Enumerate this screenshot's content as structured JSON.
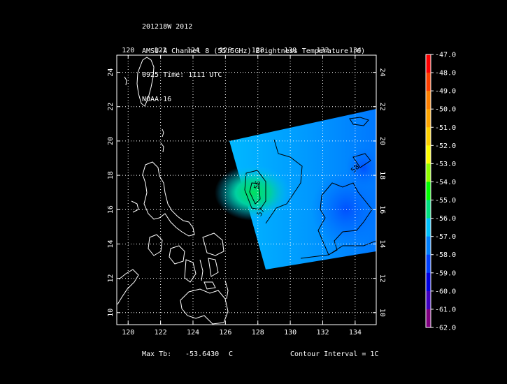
{
  "header": {
    "line1": "201218W 2012",
    "line2": "AMSU-A Channel 8 (55.5GHz) Brightness Temperature (C)",
    "line3": "0925 Time: 1111 UTC",
    "line4": "NOAA-16"
  },
  "map": {
    "lon_ticks": [
      "120",
      "122",
      "124",
      "126",
      "128",
      "130",
      "132",
      "134"
    ],
    "lat_ticks": [
      "10",
      "12",
      "14",
      "16",
      "18",
      "20",
      "22",
      "24"
    ],
    "lon_range": [
      119.3,
      135.3
    ],
    "lat_range": [
      9.3,
      25.0
    ],
    "contour_labels": [
      "56",
      "57",
      "58"
    ],
    "colors": {
      "background": "#000000",
      "coastline": "#ffffff",
      "grid": "#ffffff",
      "contour": "#000000"
    }
  },
  "colorbar": {
    "labels": [
      "-47.0",
      "-48.0",
      "-49.0",
      "-50.0",
      "-51.0",
      "-52.0",
      "-53.0",
      "-54.0",
      "-55.0",
      "-56.0",
      "-57.0",
      "-58.0",
      "-59.0",
      "-60.0",
      "-61.0",
      "-62.0"
    ],
    "colors": [
      "#ff0000",
      "#ff4000",
      "#ff8000",
      "#ffa500",
      "#ffd000",
      "#ffff00",
      "#90ff00",
      "#00ff00",
      "#00e080",
      "#00c0ff",
      "#0080ff",
      "#0040ff",
      "#0000e0",
      "#4000c0",
      "#800080",
      "#ffffff"
    ]
  },
  "footer": {
    "max_label": "Max Tb:",
    "max_value": "-53.6430",
    "max_unit": "C",
    "contour_interval": "Contour Interval = 1C"
  }
}
